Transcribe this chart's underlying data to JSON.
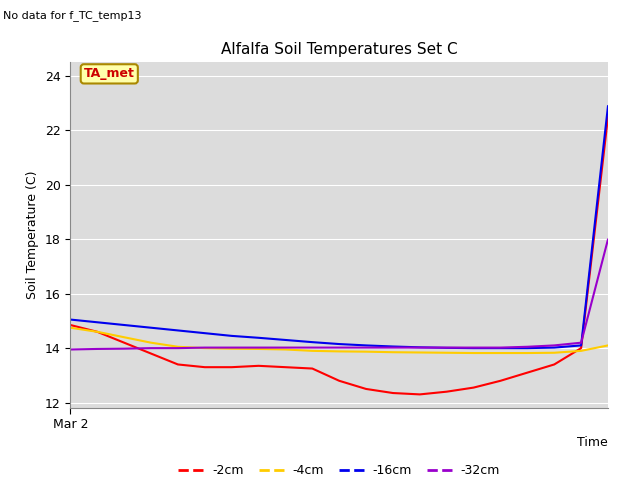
{
  "title": "Alfalfa Soil Temperatures Set C",
  "no_data_text": "No data for f_TC_temp13",
  "ta_met_label": "TA_met",
  "ylabel": "Soil Temperature (C)",
  "xlabel": "Time",
  "xstart_label": "Mar 2",
  "ylim": [
    11.8,
    24.5
  ],
  "yticks": [
    12,
    14,
    16,
    18,
    20,
    22,
    24
  ],
  "background_color": "#dcdcdc",
  "series": {
    "2cm": {
      "color": "#ff0000",
      "label": "-2cm",
      "x": [
        0,
        0.05,
        0.1,
        0.15,
        0.2,
        0.25,
        0.3,
        0.35,
        0.4,
        0.45,
        0.5,
        0.55,
        0.6,
        0.65,
        0.7,
        0.75,
        0.8,
        0.85,
        0.9,
        0.95,
        1.0
      ],
      "y": [
        14.85,
        14.6,
        14.2,
        13.8,
        13.4,
        13.3,
        13.3,
        13.35,
        13.3,
        13.25,
        12.8,
        12.5,
        12.35,
        12.3,
        12.4,
        12.55,
        12.8,
        13.1,
        13.4,
        14.0,
        22.5
      ]
    },
    "4cm": {
      "color": "#ffcc00",
      "label": "-4cm",
      "x": [
        0,
        0.05,
        0.1,
        0.15,
        0.2,
        0.25,
        0.3,
        0.35,
        0.4,
        0.45,
        0.5,
        0.55,
        0.6,
        0.65,
        0.7,
        0.75,
        0.8,
        0.85,
        0.9,
        0.95,
        1.0
      ],
      "y": [
        14.75,
        14.6,
        14.4,
        14.2,
        14.05,
        14.0,
        13.98,
        13.97,
        13.95,
        13.9,
        13.88,
        13.87,
        13.85,
        13.84,
        13.83,
        13.82,
        13.82,
        13.82,
        13.83,
        13.9,
        14.1
      ]
    },
    "16cm": {
      "color": "#0000ee",
      "label": "-16cm",
      "x": [
        0,
        0.05,
        0.1,
        0.15,
        0.2,
        0.25,
        0.3,
        0.35,
        0.4,
        0.45,
        0.5,
        0.55,
        0.6,
        0.65,
        0.7,
        0.75,
        0.8,
        0.85,
        0.9,
        0.95,
        1.0
      ],
      "y": [
        15.05,
        14.95,
        14.85,
        14.75,
        14.65,
        14.55,
        14.45,
        14.38,
        14.3,
        14.22,
        14.15,
        14.1,
        14.06,
        14.03,
        14.01,
        14.0,
        14.0,
        14.0,
        14.02,
        14.1,
        22.9
      ]
    },
    "32cm": {
      "color": "#9900cc",
      "label": "-32cm",
      "x": [
        0,
        0.05,
        0.1,
        0.15,
        0.2,
        0.25,
        0.3,
        0.35,
        0.4,
        0.45,
        0.5,
        0.55,
        0.6,
        0.65,
        0.7,
        0.75,
        0.8,
        0.85,
        0.9,
        0.95,
        1.0
      ],
      "y": [
        13.95,
        13.97,
        13.98,
        14.0,
        14.0,
        14.02,
        14.02,
        14.02,
        14.02,
        14.02,
        14.02,
        14.02,
        14.02,
        14.02,
        14.02,
        14.02,
        14.02,
        14.05,
        14.1,
        14.2,
        18.0
      ]
    }
  },
  "legend_items": [
    {
      "label": "-2cm",
      "color": "#ff0000"
    },
    {
      "label": "-4cm",
      "color": "#ffcc00"
    },
    {
      "label": "-16cm",
      "color": "#0000ee"
    },
    {
      "label": "-32cm",
      "color": "#9900cc"
    }
  ]
}
